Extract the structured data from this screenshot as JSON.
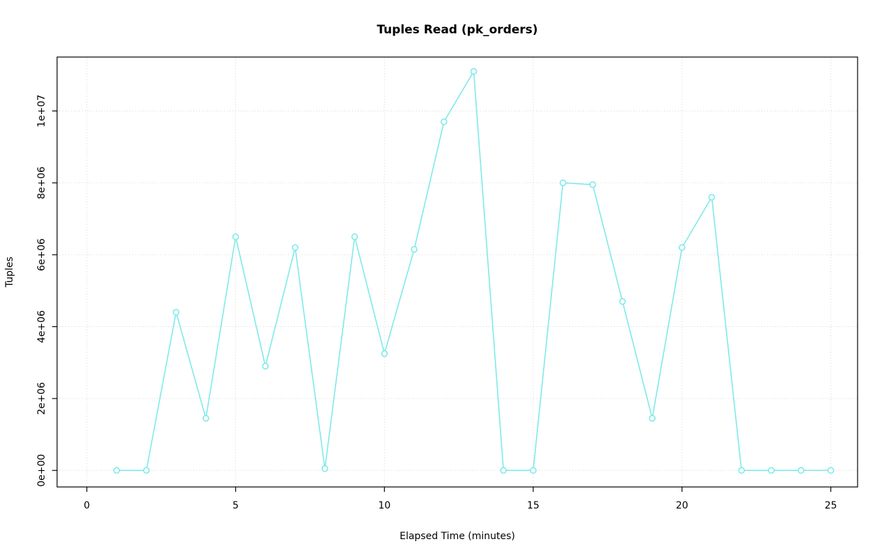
{
  "chart_data": {
    "type": "line",
    "title": "Tuples Read (pk_orders)",
    "xlabel": "Elapsed Time (minutes)",
    "ylabel": "Tuples",
    "x": [
      1,
      2,
      3,
      4,
      5,
      6,
      7,
      8,
      9,
      10,
      11,
      12,
      13,
      14,
      15,
      16,
      17,
      18,
      19,
      20,
      21,
      22,
      23,
      24,
      25
    ],
    "y": [
      0,
      0,
      4400000,
      1450000,
      6500000,
      2900000,
      6200000,
      50000,
      6500000,
      3250000,
      6150000,
      9700000,
      11100000,
      0,
      0,
      8000000,
      7950000,
      4700000,
      1450000,
      6200000,
      7600000,
      0,
      0,
      0,
      0
    ],
    "xticks": [
      0,
      5,
      10,
      15,
      20,
      25
    ],
    "yticks": [
      0,
      2000000,
      4000000,
      6000000,
      8000000,
      10000000
    ],
    "ytick_labels": [
      "0e+00",
      "2e+06",
      "4e+06",
      "6e+06",
      "8e+06",
      "1e+07"
    ],
    "xlim": [
      -1,
      25.9
    ],
    "ylim": [
      -460000,
      11500000
    ],
    "grid": true,
    "legend": "none",
    "line_color": "#7fe9e9",
    "marker": "open-circle",
    "marker_fill": "#ffffff",
    "grid_color": "#d6d6d6",
    "border_color": "#000000"
  }
}
